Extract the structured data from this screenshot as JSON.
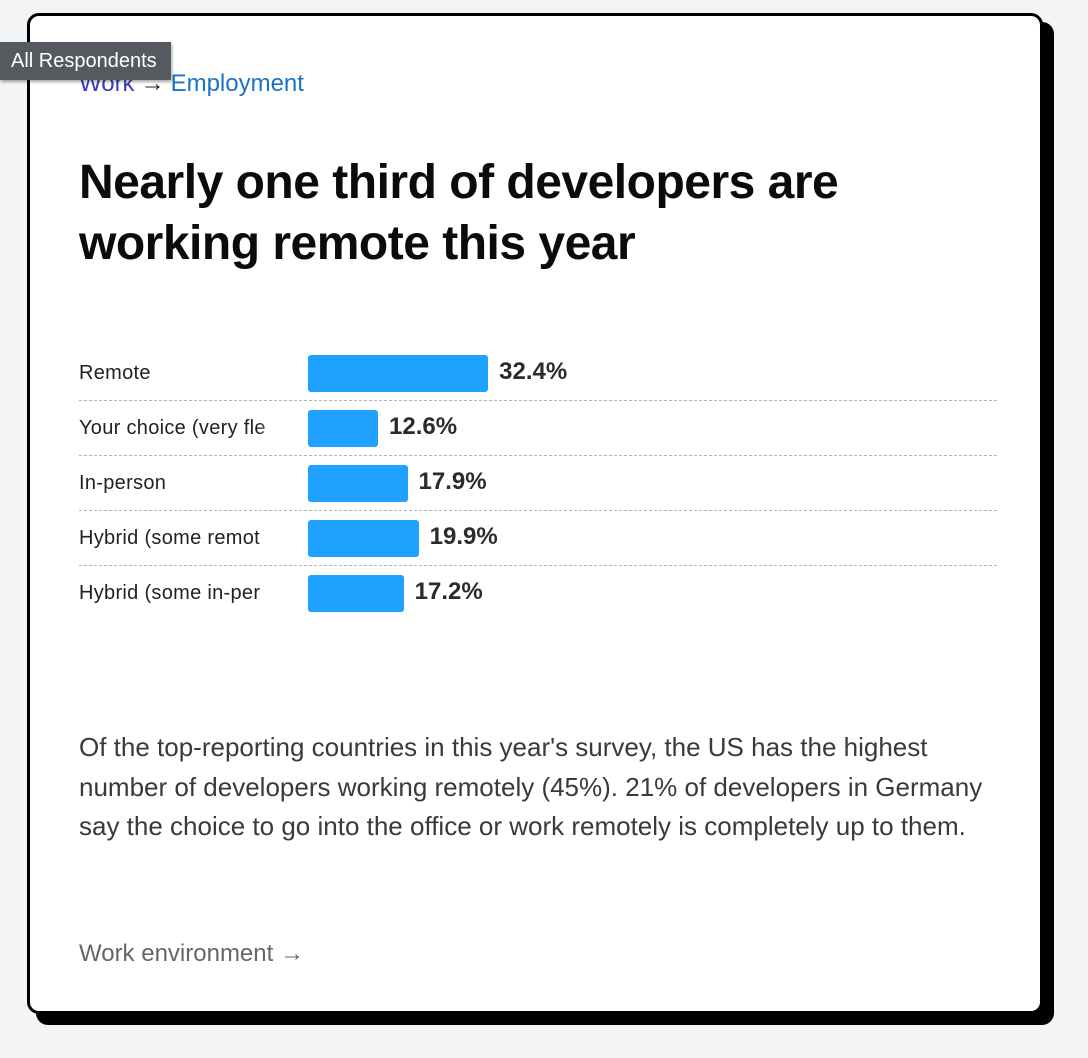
{
  "tooltip": "All Respondents",
  "breadcrumb": {
    "parent": "Work",
    "separator": "→",
    "current": "Employment"
  },
  "title": "Nearly one third of developers are working remote this year",
  "chart_data": {
    "type": "bar",
    "orientation": "horizontal",
    "categories": [
      "Remote",
      "Your choice (very flexible, you can come in when you want or just as needed)",
      "In-person",
      "Hybrid (some remote, leans heavy to in-person)",
      "Hybrid (some in-person, leans heavy to flexibility)"
    ],
    "category_labels_visible": [
      "Remote",
      "Your choice (very fle",
      "In-person",
      "Hybrid (some remot",
      "Hybrid (some in-per"
    ],
    "values": [
      32.4,
      12.6,
      17.9,
      19.9,
      17.2
    ],
    "value_labels": [
      "32.4%",
      "12.6%",
      "17.9%",
      "19.9%",
      "17.2%"
    ],
    "xlim": [
      0,
      100
    ],
    "bar_color": "#1ea1ff",
    "grid": false
  },
  "description": "Of the top-reporting countries in this year's survey, the US has the highest number of developers working remotely (45%). 21% of developers in Germany say the choice to go into the office or work remotely is completely up to them.",
  "footer_link": "Work environment →"
}
